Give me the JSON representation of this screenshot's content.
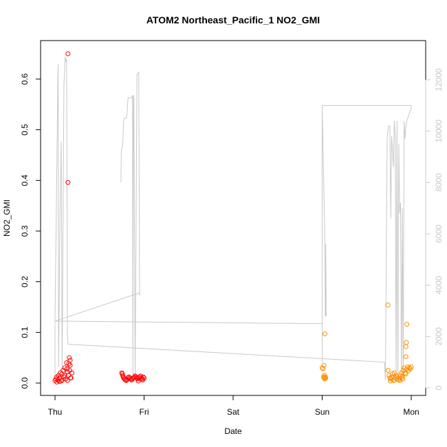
{
  "chart_data": {
    "type": "scatter",
    "title": "ATOM2 Northeast_Pacific_1 NO2_GMI",
    "xlabel": "Date",
    "ylabel": "NO2_GMI",
    "x_ticks": [
      "Thu",
      "Fri",
      "Sat",
      "Sun",
      "Mon"
    ],
    "x_domain_days": [
      0,
      4
    ],
    "y_left": {
      "lim": [
        0,
        0.655
      ],
      "ticks": [
        "0.0",
        "0.1",
        "0.2",
        "0.3",
        "0.4",
        "0.5",
        "0.6"
      ],
      "tick_values": [
        0,
        0.1,
        0.2,
        0.3,
        0.4,
        0.5,
        0.6
      ]
    },
    "y_right": {
      "lim": [
        0,
        13000
      ],
      "ticks": [
        "0",
        "2000",
        "4000",
        "6000",
        "8000",
        "10000",
        "12000"
      ],
      "tick_values": [
        0,
        2000,
        4000,
        6000,
        8000,
        10000,
        12000
      ],
      "color": "#c8c8c8"
    },
    "grid": false,
    "series": [
      {
        "kind": "points",
        "color": "#ff0000",
        "points": [
          [
            0.0,
            0.005
          ],
          [
            0.01,
            0.008
          ],
          [
            0.02,
            0.012
          ],
          [
            0.03,
            0.006
          ],
          [
            0.04,
            0.015
          ],
          [
            0.05,
            0.01
          ],
          [
            0.06,
            0.02
          ],
          [
            0.07,
            0.004
          ],
          [
            0.08,
            0.018
          ],
          [
            0.09,
            0.025
          ],
          [
            0.1,
            0.012
          ],
          [
            0.11,
            0.03
          ],
          [
            0.12,
            0.008
          ],
          [
            0.13,
            0.04
          ],
          [
            0.14,
            0.022
          ],
          [
            0.15,
            0.015
          ],
          [
            0.16,
            0.05
          ],
          [
            0.17,
            0.035
          ],
          [
            0.18,
            0.01
          ],
          [
            0.19,
            0.02
          ],
          [
            0.02,
            0.002
          ],
          [
            0.05,
            0.003
          ],
          [
            0.08,
            0.006
          ],
          [
            0.11,
            0.015
          ],
          [
            0.14,
            0.005
          ],
          [
            0.17,
            0.045
          ],
          [
            0.135,
            0.028
          ],
          [
            0.155,
            0.038
          ],
          [
            0.165,
            0.025
          ],
          [
            0.175,
            0.01
          ],
          [
            0.145,
            0.65
          ],
          [
            0.145,
            0.396
          ],
          [
            0.75,
            0.02
          ],
          [
            0.76,
            0.015
          ],
          [
            0.77,
            0.01
          ],
          [
            0.78,
            0.008
          ],
          [
            0.79,
            0.006
          ],
          [
            0.8,
            0.005
          ],
          [
            0.81,
            0.007
          ],
          [
            0.82,
            0.01
          ],
          [
            0.83,
            0.012
          ],
          [
            0.84,
            0.01
          ],
          [
            0.85,
            0.008
          ],
          [
            0.86,
            0.006
          ],
          [
            0.87,
            0.008
          ],
          [
            0.88,
            0.01
          ],
          [
            0.89,
            0.012
          ],
          [
            0.9,
            0.014
          ],
          [
            0.91,
            0.012
          ],
          [
            0.92,
            0.01
          ],
          [
            0.93,
            0.008
          ],
          [
            0.94,
            0.01
          ],
          [
            0.95,
            0.012
          ],
          [
            0.96,
            0.014
          ],
          [
            0.97,
            0.01
          ],
          [
            0.98,
            0.008
          ],
          [
            0.99,
            0.012
          ],
          [
            1.0,
            0.01
          ],
          [
            0.755,
            0.018
          ],
          [
            0.765,
            0.013
          ],
          [
            0.935,
            0.004
          ],
          [
            0.985,
            0.006
          ]
        ]
      },
      {
        "kind": "points",
        "color": "#ff8c00",
        "points": [
          [
            3.0,
            0.03
          ],
          [
            3.01,
            0.028
          ],
          [
            3.02,
            0.035
          ],
          [
            3.015,
            0.012
          ],
          [
            3.02,
            0.01
          ],
          [
            3.025,
            0.015
          ],
          [
            3.03,
            0.008
          ],
          [
            3.035,
            0.012
          ],
          [
            3.04,
            0.01
          ],
          [
            3.03,
            0.097
          ],
          [
            3.74,
            0.154
          ],
          [
            3.74,
            0.025
          ],
          [
            3.75,
            0.015
          ],
          [
            3.76,
            0.01
          ],
          [
            3.77,
            0.008
          ],
          [
            3.78,
            0.012
          ],
          [
            3.79,
            0.018
          ],
          [
            3.8,
            0.005
          ],
          [
            3.81,
            0.02
          ],
          [
            3.82,
            0.01
          ],
          [
            3.83,
            0.015
          ],
          [
            3.84,
            0.012
          ],
          [
            3.85,
            0.008
          ],
          [
            3.86,
            0.006
          ],
          [
            3.87,
            0.01
          ],
          [
            3.88,
            0.015
          ],
          [
            3.89,
            0.02
          ],
          [
            3.9,
            0.012
          ],
          [
            3.91,
            0.025
          ],
          [
            3.92,
            0.03
          ],
          [
            3.93,
            0.02
          ],
          [
            3.94,
            0.018
          ],
          [
            3.95,
            0.028
          ],
          [
            3.96,
            0.032
          ],
          [
            3.97,
            0.025
          ],
          [
            3.98,
            0.03
          ],
          [
            3.99,
            0.028
          ],
          [
            4.0,
            0.032
          ],
          [
            3.94,
            0.052
          ],
          [
            3.94,
            0.072
          ],
          [
            3.945,
            0.08
          ],
          [
            3.95,
            0.116
          ],
          [
            3.765,
            0.004
          ],
          [
            3.815,
            0.006
          ],
          [
            3.875,
            0.005
          ],
          [
            3.905,
            0.008
          ]
        ]
      },
      {
        "kind": "line",
        "axis": "right",
        "color": "#c8c8c8",
        "points": [
          [
            0.0,
            400
          ],
          [
            0.0,
            2600
          ],
          [
            0.03,
            11500
          ],
          [
            0.035,
            12600
          ],
          [
            0.04,
            800
          ],
          [
            0.055,
            6500
          ],
          [
            0.07,
            9600
          ],
          [
            0.08,
            600
          ],
          [
            0.1,
            11800
          ],
          [
            0.115,
            12900
          ],
          [
            0.125,
            12700
          ],
          [
            0.13,
            12800
          ],
          [
            0.14,
            2000
          ],
          [
            0.145,
            1800
          ],
          [
            0.145,
            1700
          ],
          [
            3.7,
            1000
          ],
          [
            3.71,
            300
          ],
          [
            3.73,
            9800
          ],
          [
            3.745,
            10200
          ],
          [
            3.76,
            10200
          ],
          [
            3.77,
            6600
          ],
          [
            3.78,
            9800
          ],
          [
            3.8,
            8600
          ],
          [
            3.81,
            10400
          ],
          [
            3.82,
            9800
          ],
          [
            3.83,
            300
          ],
          [
            3.84,
            10400
          ],
          [
            3.85,
            300
          ],
          [
            3.86,
            9500
          ],
          [
            3.87,
            6800
          ],
          [
            3.88,
            7200
          ],
          [
            3.89,
            300
          ],
          [
            3.9,
            7000
          ],
          [
            3.91,
            300
          ],
          [
            3.92,
            10400
          ],
          [
            3.93,
            9700
          ],
          [
            3.94,
            10200
          ],
          [
            3.95,
            10400
          ],
          [
            4.0,
            10900
          ],
          [
            4.0,
            11000
          ],
          [
            3.0,
            11000
          ],
          [
            3.0,
            1000
          ],
          [
            3.0,
            2500
          ],
          [
            0.0,
            2600
          ]
        ]
      },
      {
        "kind": "line",
        "axis": "right",
        "color": "#c8c8c8",
        "points": [
          [
            0.74,
            8000
          ],
          [
            0.745,
            9300
          ],
          [
            0.76,
            9400
          ],
          [
            0.77,
            10400
          ],
          [
            0.78,
            10500
          ],
          [
            0.8,
            10500
          ],
          [
            0.81,
            10700
          ],
          [
            0.82,
            11300
          ],
          [
            0.84,
            11300
          ],
          [
            0.86,
            11300
          ],
          [
            0.87,
            11400
          ],
          [
            0.875,
            500
          ],
          [
            0.88,
            11300
          ],
          [
            0.885,
            11400
          ],
          [
            0.9,
            400
          ],
          [
            0.92,
            12200
          ],
          [
            0.94,
            12300
          ],
          [
            0.95,
            3600
          ],
          [
            0.95,
            3700
          ],
          [
            0.0,
            2600
          ]
        ]
      },
      {
        "kind": "line",
        "axis": "right",
        "color": "#c8c8c8",
        "points": [
          [
            3.0,
            11000
          ],
          [
            3.03,
            5800
          ],
          [
            3.035,
            2800
          ],
          [
            3.04,
            2800
          ],
          [
            3.04,
            5600
          ],
          [
            3.045,
            2800
          ]
        ]
      }
    ]
  }
}
